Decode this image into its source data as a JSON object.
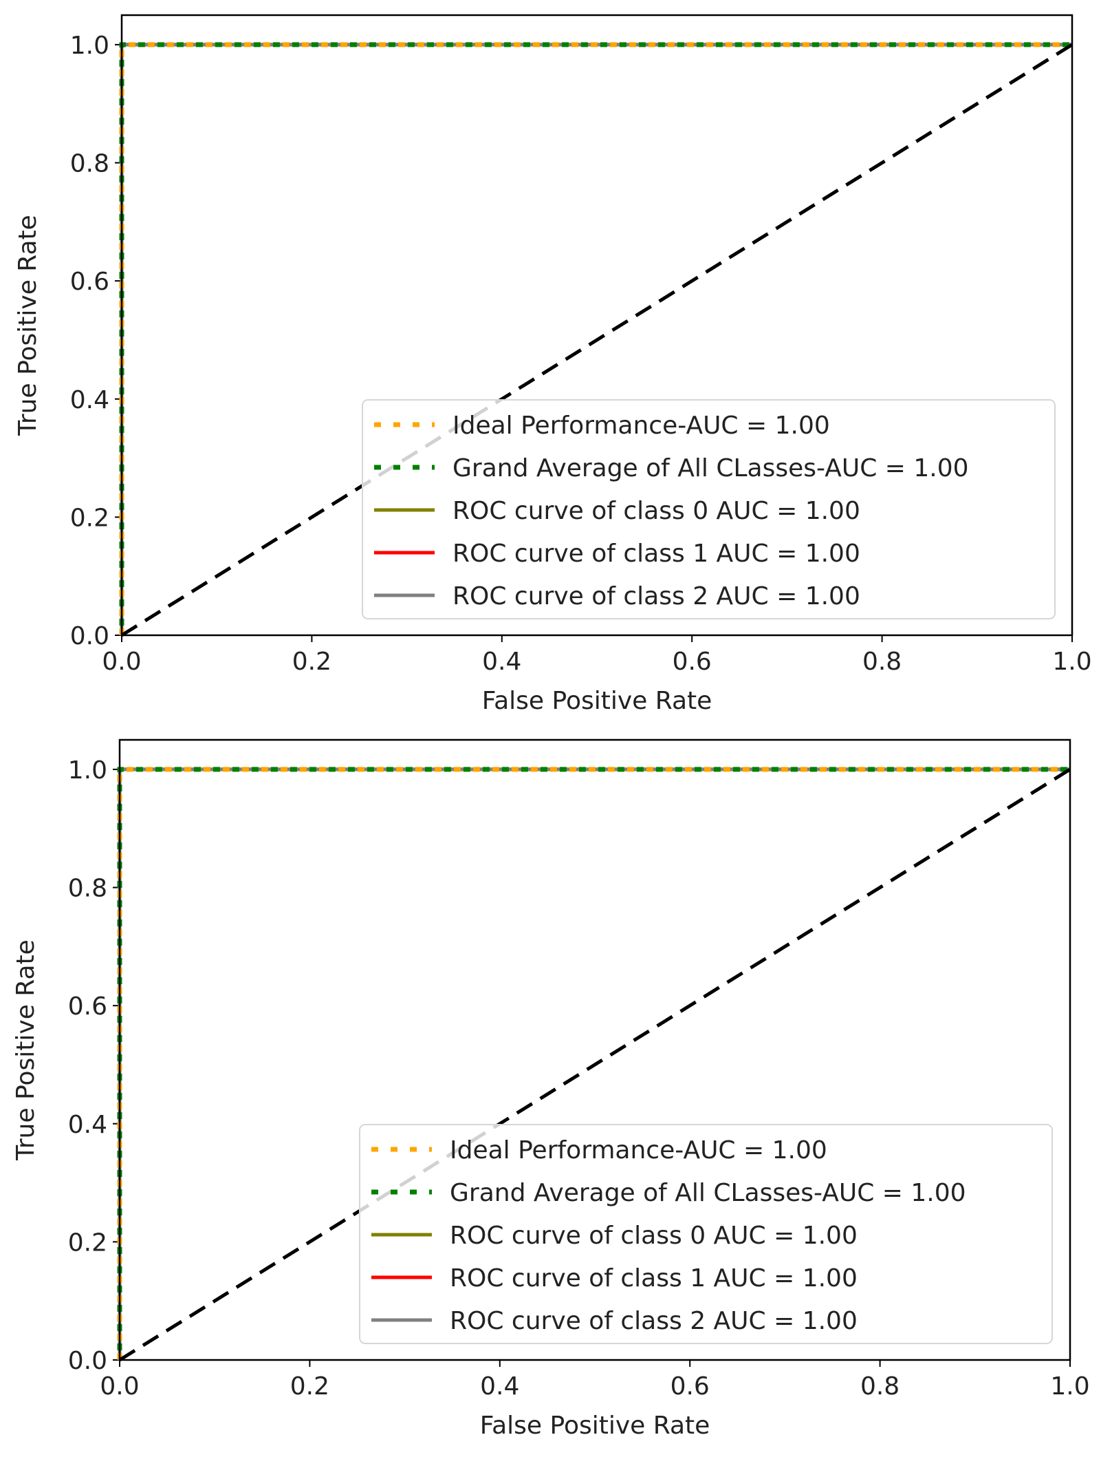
{
  "colors": {
    "ideal": "#ffa500",
    "grand": "#008000",
    "class0": "#808000",
    "class1": "#ff0000",
    "class2": "#808080",
    "chance": "#000000"
  },
  "chart_data": [
    {
      "type": "line",
      "title": "",
      "xlabel": "False Positive Rate",
      "ylabel": "True Positive Rate",
      "xlim": [
        0.0,
        1.0
      ],
      "ylim": [
        0.0,
        1.05
      ],
      "xticks": [
        "0.0",
        "0.2",
        "0.4",
        "0.6",
        "0.8",
        "1.0"
      ],
      "yticks": [
        "0.0",
        "0.2",
        "0.4",
        "0.6",
        "0.8",
        "1.0"
      ],
      "legend_position": "lower-right",
      "series": [
        {
          "key": "ideal",
          "name": "Ideal Performance-AUC = 1.00",
          "style": "dotted",
          "x": [
            0,
            0,
            1
          ],
          "y": [
            0,
            1,
            1
          ]
        },
        {
          "key": "grand",
          "name": "Grand Average of All CLasses-AUC = 1.00",
          "style": "dotted",
          "x": [
            0,
            0,
            1
          ],
          "y": [
            0,
            1,
            1
          ]
        },
        {
          "key": "class0",
          "name": "ROC curve of class 0 AUC = 1.00",
          "style": "solid",
          "x": [
            0,
            0,
            1
          ],
          "y": [
            0,
            1,
            1
          ]
        },
        {
          "key": "class1",
          "name": "ROC curve of class 1 AUC = 1.00",
          "style": "solid",
          "x": [
            0,
            0,
            1
          ],
          "y": [
            0,
            1,
            1
          ]
        },
        {
          "key": "class2",
          "name": "ROC curve of class 2 AUC = 1.00",
          "style": "solid",
          "x": [
            0,
            0,
            1
          ],
          "y": [
            0,
            1,
            1
          ]
        }
      ],
      "reference_line": {
        "name": "chance",
        "x": [
          0,
          1
        ],
        "y": [
          0,
          1
        ],
        "style": "dashed"
      }
    },
    {
      "type": "line",
      "title": "",
      "xlabel": "False Positive Rate",
      "ylabel": "True Positive Rate",
      "xlim": [
        0.0,
        1.0
      ],
      "ylim": [
        0.0,
        1.05
      ],
      "xticks": [
        "0.0",
        "0.2",
        "0.4",
        "0.6",
        "0.8",
        "1.0"
      ],
      "yticks": [
        "0.0",
        "0.2",
        "0.4",
        "0.6",
        "0.8",
        "1.0"
      ],
      "legend_position": "lower-right",
      "series": [
        {
          "key": "ideal",
          "name": "Ideal Performance-AUC = 1.00",
          "style": "dotted",
          "x": [
            0,
            0,
            1
          ],
          "y": [
            0,
            1,
            1
          ]
        },
        {
          "key": "grand",
          "name": "Grand Average of All CLasses-AUC = 1.00",
          "style": "dotted",
          "x": [
            0,
            0,
            1
          ],
          "y": [
            0,
            1,
            1
          ]
        },
        {
          "key": "class0",
          "name": "ROC curve of class 0 AUC = 1.00",
          "style": "solid",
          "x": [
            0,
            0,
            1
          ],
          "y": [
            0,
            1,
            1
          ]
        },
        {
          "key": "class1",
          "name": "ROC curve of class 1 AUC = 1.00",
          "style": "solid",
          "x": [
            0,
            0,
            1
          ],
          "y": [
            0,
            1,
            1
          ]
        },
        {
          "key": "class2",
          "name": "ROC curve of class 2 AUC = 1.00",
          "style": "solid",
          "x": [
            0,
            0,
            1
          ],
          "y": [
            0,
            1,
            1
          ]
        }
      ],
      "reference_line": {
        "name": "chance",
        "x": [
          0,
          1
        ],
        "y": [
          0,
          1
        ],
        "style": "dashed"
      }
    }
  ]
}
